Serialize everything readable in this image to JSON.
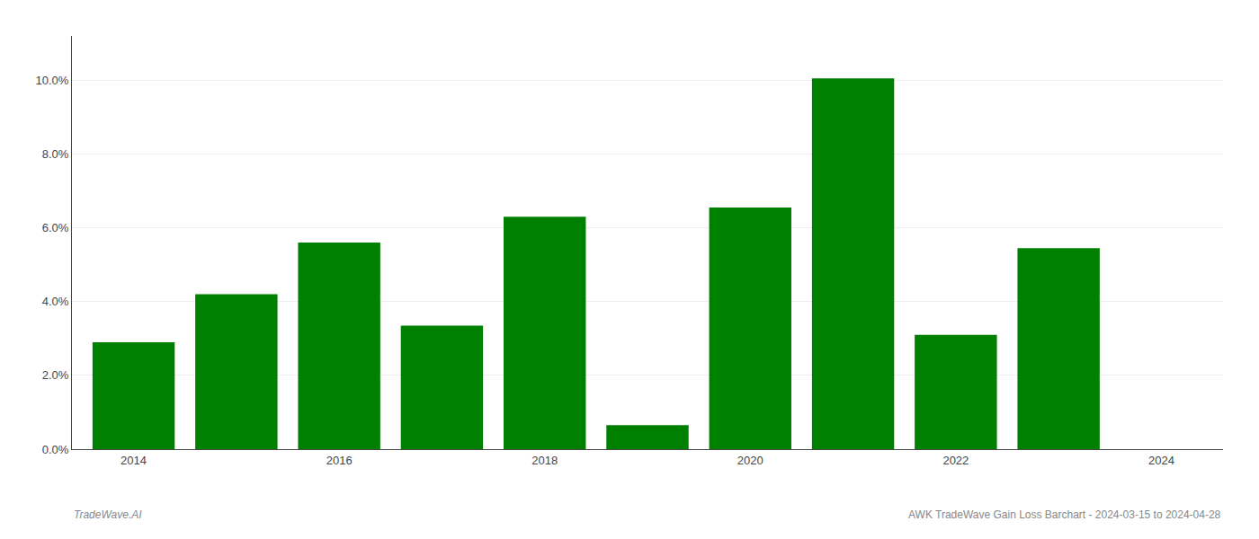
{
  "chart_data": {
    "type": "bar",
    "x": [
      2014,
      2015,
      2016,
      2017,
      2018,
      2019,
      2020,
      2021,
      2022,
      2023,
      2024
    ],
    "values": [
      0.029,
      0.042,
      0.056,
      0.0335,
      0.063,
      0.0065,
      0.0655,
      0.1005,
      0.031,
      0.0545,
      null
    ],
    "color": "#008000",
    "xlim": [
      2013.4,
      2024.6
    ],
    "xticks": [
      2014,
      2016,
      2018,
      2020,
      2022,
      2024
    ],
    "ylim": [
      0,
      0.112
    ],
    "yticks": [
      {
        "value": 0.0,
        "label": "0.0%"
      },
      {
        "value": 0.02,
        "label": "2.0%"
      },
      {
        "value": 0.04,
        "label": "4.0%"
      },
      {
        "value": 0.06,
        "label": "6.0%"
      },
      {
        "value": 0.08,
        "label": "8.0%"
      },
      {
        "value": 0.1,
        "label": "10.0%"
      }
    ],
    "grid": true,
    "annotations": [
      "TradeWave.AI",
      "AWK TradeWave Gain Loss Barchart - 2024-03-15 to 2024-04-28"
    ]
  }
}
